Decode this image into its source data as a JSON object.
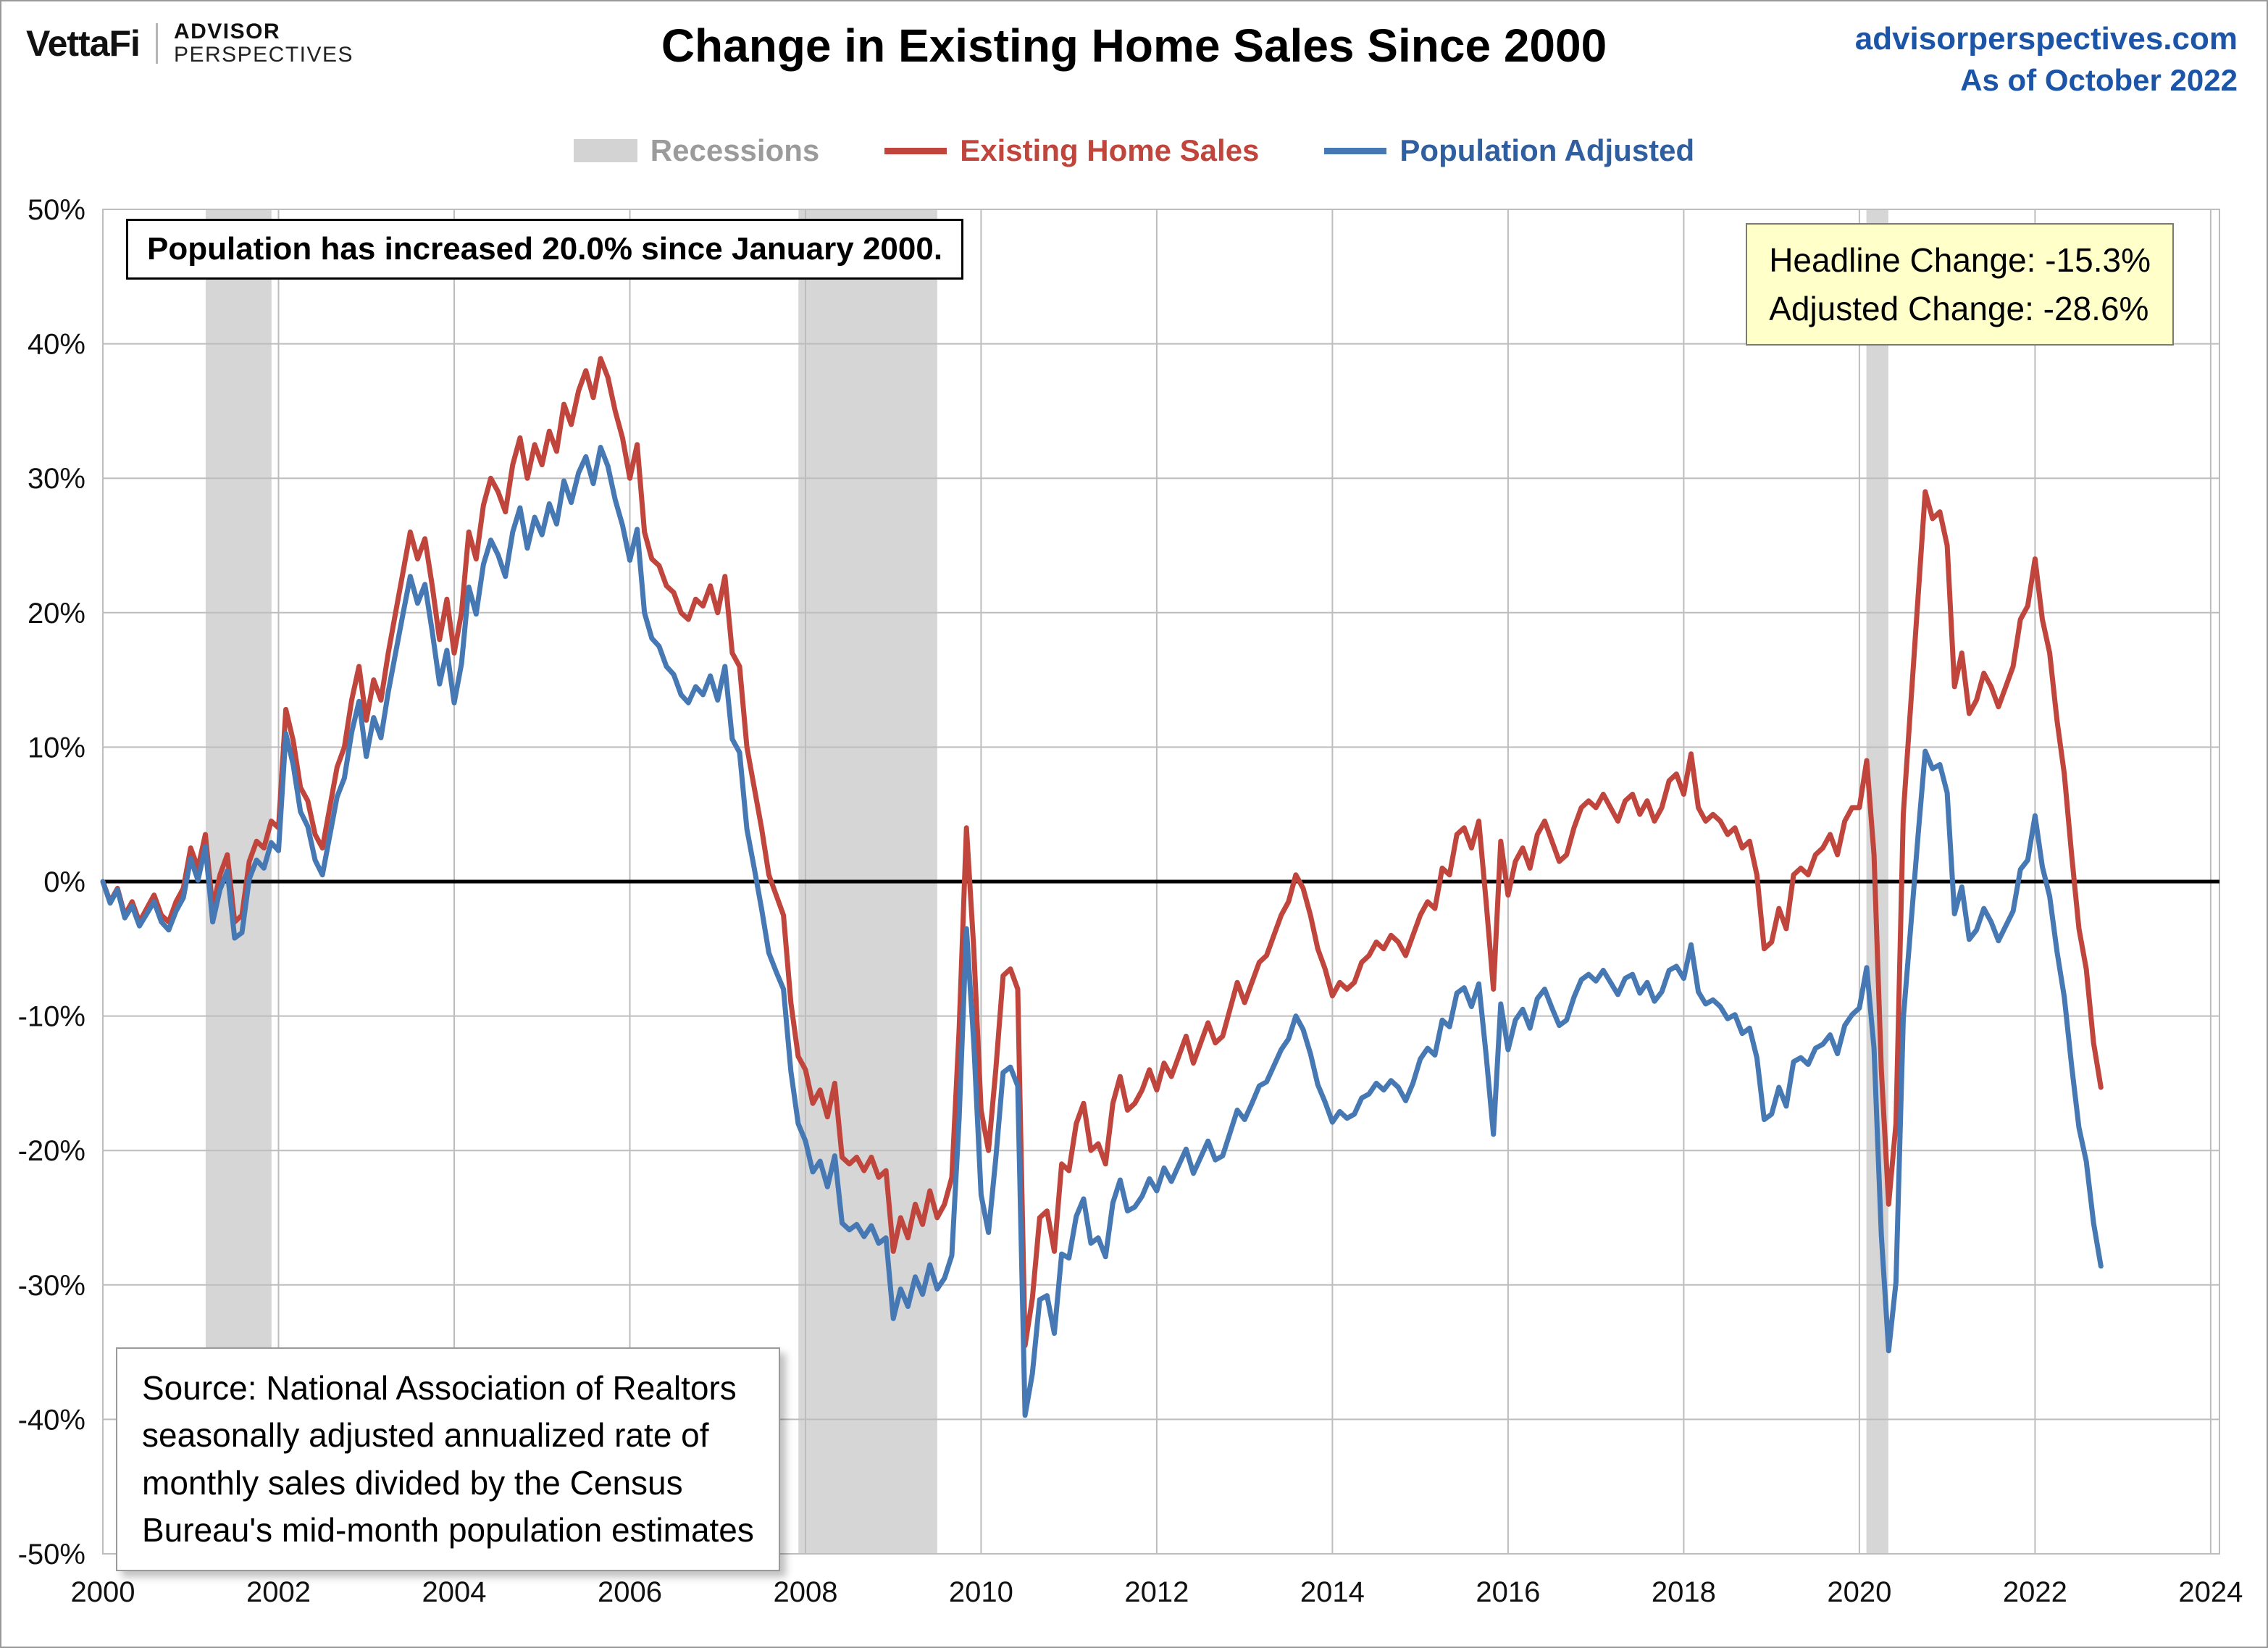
{
  "header": {
    "brand": {
      "vettafi": "VettaFi",
      "advisor": "ADVISOR",
      "perspectives": "PERSPECTIVES"
    },
    "title": "Change in Existing Home Sales Since 2000",
    "site": "advisorperspectives.com",
    "as_of": "As of October 2022"
  },
  "legend": [
    {
      "label": "Recessions",
      "type": "band",
      "color": "#d3d3d3",
      "text_color": "#9b9b9b"
    },
    {
      "label": "Existing Home Sales",
      "type": "line",
      "color": "#c0453c",
      "text_color": "#c0453c"
    },
    {
      "label": "Population Adjusted",
      "type": "line",
      "color": "#4678b4",
      "text_color": "#2f5f9e"
    }
  ],
  "annotations": {
    "population_note": "Population has increased 20.0% since January 2000.",
    "headline_change": "Headline Change: -15.3%",
    "adjusted_change": "Adjusted Change: -28.6%",
    "source_lines": [
      "Source: National Association of Realtors",
      "seasonally adjusted annualized rate of",
      "monthly sales divided by the Census",
      "Bureau's mid-month population estimates"
    ]
  },
  "chart_data": {
    "type": "line",
    "title": "Change in Existing Home Sales Since 2000",
    "x_start_year": 2000,
    "x_months_step": 1,
    "x_end_label": "October 2022",
    "xlim": [
      2000,
      2024.1
    ],
    "ylim": [
      -50,
      50
    ],
    "y_tick_step": 10,
    "x_ticks": [
      2000,
      2002,
      2004,
      2006,
      2008,
      2010,
      2012,
      2014,
      2016,
      2018,
      2020,
      2022,
      2024
    ],
    "grid": true,
    "legend_position": "top",
    "colors": {
      "recession_band": "#d6d6d6",
      "gridline": "#bdbdbd",
      "zero_line": "#000000"
    },
    "recessions": [
      [
        2001.17,
        2001.92
      ],
      [
        2007.92,
        2009.5
      ],
      [
        2020.08,
        2020.33
      ]
    ],
    "series": [
      {
        "name": "Existing Home Sales",
        "color": "#c0453c",
        "values": [
          0,
          -1.5,
          -0.5,
          -2.5,
          -1.5,
          -3,
          -2,
          -1,
          -2.5,
          -3,
          -1.5,
          -0.5,
          2.5,
          1,
          3.5,
          -2,
          0.5,
          2,
          -3,
          -2.5,
          1.5,
          3,
          2.5,
          4.5,
          4,
          12.8,
          10.5,
          7,
          6,
          3.5,
          2.5,
          5.5,
          8.5,
          10,
          13.5,
          16,
          12,
          15,
          13.5,
          17,
          20,
          23,
          26,
          24,
          25.5,
          22,
          18,
          21,
          17,
          20,
          26,
          24,
          28,
          30,
          29,
          27.5,
          31,
          33,
          30,
          32.5,
          31,
          33.5,
          32,
          35.5,
          34,
          36.5,
          38,
          36,
          38.9,
          37.5,
          35,
          33,
          30,
          32.5,
          26,
          24,
          23.5,
          22,
          21.5,
          20,
          19.5,
          21,
          20.5,
          22,
          20,
          22.7,
          17,
          16,
          10,
          7,
          4,
          0.5,
          -1,
          -2.5,
          -9,
          -13,
          -14,
          -16.5,
          -15.5,
          -17.5,
          -15,
          -20.5,
          -21,
          -20.5,
          -21.5,
          -20.5,
          -22,
          -21.5,
          -27.5,
          -25,
          -26.5,
          -24,
          -25.5,
          -23,
          -25,
          -24,
          -22,
          -11,
          4,
          -5,
          -17,
          -20,
          -14,
          -7,
          -6.5,
          -8,
          -34.5,
          -31,
          -25,
          -24.5,
          -27.5,
          -21,
          -21.5,
          -18,
          -16.5,
          -20,
          -19.5,
          -21,
          -16.5,
          -14.5,
          -17,
          -16.5,
          -15.5,
          -14,
          -15.5,
          -13.5,
          -14.5,
          -13,
          -11.5,
          -13.5,
          -12,
          -10.5,
          -12,
          -11.5,
          -9.5,
          -7.5,
          -9,
          -7.5,
          -6,
          -5.5,
          -4,
          -2.5,
          -1.5,
          0.5,
          -0.5,
          -2.5,
          -5,
          -6.5,
          -8.5,
          -7.5,
          -8,
          -7.5,
          -6,
          -5.5,
          -4.5,
          -5,
          -4,
          -4.5,
          -5.5,
          -4,
          -2.5,
          -1.5,
          -2,
          1,
          0.5,
          3.5,
          4,
          2.5,
          4.5,
          -1.5,
          -8,
          3,
          -1,
          1.5,
          2.5,
          1,
          3.5,
          4.5,
          3,
          1.5,
          2,
          4,
          5.5,
          6,
          5.5,
          6.5,
          5.5,
          4.5,
          6,
          6.5,
          5,
          6,
          4.5,
          5.5,
          7.5,
          8,
          6.5,
          9.5,
          5.5,
          4.5,
          5,
          4.5,
          3.5,
          4,
          2.5,
          3,
          0.5,
          -5,
          -4.5,
          -2,
          -3.5,
          0.5,
          1,
          0.5,
          2,
          2.5,
          3.5,
          2,
          4.5,
          5.5,
          5.5,
          9,
          2,
          -14,
          -24,
          -18,
          5,
          13,
          21,
          29,
          27,
          27.5,
          25,
          14.5,
          17,
          12.5,
          13.5,
          15.5,
          14.5,
          13,
          14.5,
          16,
          19.5,
          20.5,
          24,
          19.5,
          17,
          12,
          8,
          2,
          -3.5,
          -6.5,
          -12,
          -15.3
        ]
      },
      {
        "name": "Population Adjusted",
        "color": "#4678b4",
        "values": [
          0,
          -1.6,
          -0.6,
          -2.7,
          -1.8,
          -3.3,
          -2.4,
          -1.5,
          -3,
          -3.6,
          -2.2,
          -1.2,
          1.7,
          0.1,
          2.6,
          -3,
          -0.6,
          0.8,
          -4.2,
          -3.8,
          0.2,
          1.6,
          1,
          2.9,
          2.3,
          11,
          8.7,
          5.2,
          4.1,
          1.6,
          0.5,
          3.4,
          6.3,
          7.7,
          11.1,
          13.4,
          9.3,
          12.2,
          10.7,
          14.1,
          17,
          19.9,
          22.7,
          20.7,
          22.1,
          18.6,
          14.7,
          17.2,
          13.3,
          16.2,
          21.9,
          19.9,
          23.6,
          25.4,
          24.3,
          22.7,
          26,
          27.8,
          24.8,
          27.1,
          25.8,
          28.1,
          26.6,
          29.8,
          28.2,
          30.4,
          31.6,
          29.6,
          32.3,
          30.9,
          28.4,
          26.5,
          23.9,
          26.2,
          20,
          18.1,
          17.5,
          16,
          15.4,
          13.9,
          13.3,
          14.5,
          13.9,
          15.3,
          13.5,
          16,
          10.6,
          9.6,
          3.9,
          1,
          -2,
          -5.3,
          -6.7,
          -8,
          -14.1,
          -18,
          -19.3,
          -21.6,
          -20.8,
          -22.7,
          -20.4,
          -25.4,
          -25.9,
          -25.5,
          -26.4,
          -25.6,
          -26.9,
          -26.5,
          -32.5,
          -30.3,
          -31.6,
          -29.4,
          -30.7,
          -28.5,
          -30.3,
          -29.5,
          -27.8,
          -17.6,
          -3.5,
          -12,
          -23.3,
          -26.1,
          -20.6,
          -14.2,
          -13.8,
          -15.2,
          -39.7,
          -36.6,
          -31.1,
          -30.8,
          -33.6,
          -27.7,
          -28,
          -24.9,
          -23.6,
          -26.9,
          -26.5,
          -27.9,
          -23.9,
          -22.2,
          -24.5,
          -24.2,
          -23.4,
          -22.1,
          -23,
          -21.3,
          -22.3,
          -21.1,
          -19.9,
          -21.7,
          -20.5,
          -19.3,
          -20.7,
          -20.4,
          -18.7,
          -17,
          -17.7,
          -16.5,
          -15.2,
          -14.9,
          -13.7,
          -12.5,
          -11.7,
          -10,
          -11,
          -12.8,
          -15.1,
          -16.4,
          -17.9,
          -17.1,
          -17.6,
          -17.3,
          -16.1,
          -15.8,
          -15,
          -15.5,
          -14.8,
          -15.3,
          -16.3,
          -15,
          -13.2,
          -12.4,
          -12.9,
          -10.3,
          -10.8,
          -8.3,
          -7.9,
          -9.3,
          -7.6,
          -12.9,
          -18.8,
          -9.1,
          -12.5,
          -10.3,
          -9.5,
          -10.9,
          -8.7,
          -8,
          -9.4,
          -10.7,
          -10.3,
          -8.6,
          -7.3,
          -6.9,
          -7.4,
          -6.6,
          -7.5,
          -8.4,
          -7.2,
          -6.9,
          -8.3,
          -7.5,
          -8.9,
          -8.2,
          -6.6,
          -6.3,
          -7.2,
          -4.7,
          -8.2,
          -9.1,
          -8.8,
          -9.3,
          -10.2,
          -9.9,
          -11.3,
          -10.9,
          -13.1,
          -17.7,
          -17.3,
          -15.3,
          -16.7,
          -13.4,
          -13.1,
          -13.6,
          -12.4,
          -12.1,
          -11.4,
          -12.8,
          -10.7,
          -9.9,
          -9.4,
          -6.4,
          -12.4,
          -26.3,
          -34.9,
          -29.8,
          -10.2,
          -3.5,
          3.3,
          9.7,
          8.4,
          8.7,
          6.6,
          -2.4,
          -0.4,
          -4.3,
          -3.6,
          -2,
          -3,
          -4.4,
          -3.3,
          -2.2,
          0.9,
          1.6,
          4.9,
          1.1,
          -1.1,
          -5.2,
          -8.6,
          -13.7,
          -18.3,
          -20.8,
          -25.4,
          -28.6
        ]
      }
    ]
  }
}
